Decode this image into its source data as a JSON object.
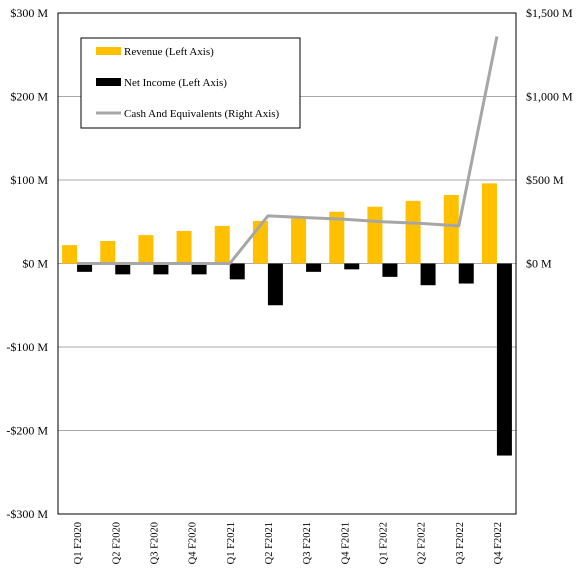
{
  "chart_data": {
    "type": "bar+line",
    "title": "",
    "categories": [
      "Q1 F2020",
      "Q2 F2020",
      "Q3 F2020",
      "Q4 F2020",
      "Q1 F2021",
      "Q2 F2021",
      "Q3 F2021",
      "Q4 F2021",
      "Q1 F2022",
      "Q2 F2022",
      "Q3 F2022",
      "Q4 F2022"
    ],
    "left_axis": {
      "range": [
        -300,
        300
      ],
      "ticks": [
        300,
        200,
        100,
        0,
        -100,
        -200,
        -300
      ],
      "tick_labels": [
        "$300 M",
        "$200 M",
        "$100 M",
        "$0 M",
        "-$100 M",
        "-$200 M",
        "-$300 M"
      ],
      "unit": "M"
    },
    "right_axis": {
      "range": [
        -1500,
        1500
      ],
      "ticks": [
        1500,
        1000,
        500,
        0
      ],
      "tick_labels": [
        "$1,500 M",
        "$1,000 M",
        "$500 M",
        "$0 M"
      ],
      "unit": "M"
    },
    "grid": "horizontal",
    "legend_position": "top-left",
    "series": [
      {
        "name": "Revenue (Left Axis)",
        "kind": "bar",
        "axis": "left",
        "color": "#FFC000",
        "values": [
          22,
          27,
          34,
          39,
          45,
          51,
          56,
          62,
          68,
          75,
          82,
          96
        ]
      },
      {
        "name": "Net Income (Left Axis)",
        "kind": "bar",
        "axis": "left",
        "color": "#000000",
        "values": [
          -10,
          -13,
          -13,
          -13,
          -19,
          -50,
          -10,
          -7,
          -16,
          -26,
          -24,
          -230
        ]
      },
      {
        "name": "Cash And Equivalents (Right Axis)",
        "kind": "line",
        "axis": "right",
        "color": "#A6A6A6",
        "values": [
          0,
          0,
          0,
          0,
          0,
          285,
          275,
          265,
          250,
          240,
          225,
          1360
        ]
      }
    ]
  }
}
